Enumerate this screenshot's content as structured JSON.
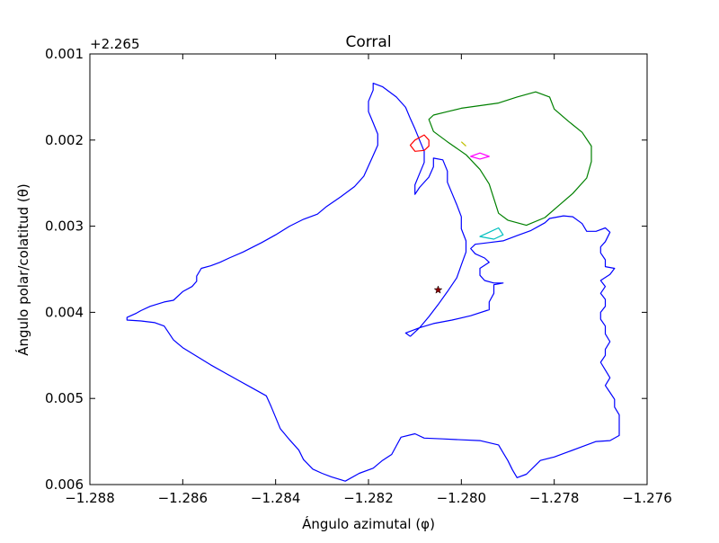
{
  "chart_data": {
    "type": "line",
    "title": "Corral",
    "xlabel": "Ángulo azimutal (φ)",
    "ylabel": "Ángulo polar/colatitud (θ)",
    "y_offset_label": "+2.265",
    "xlim": [
      -1.288,
      -1.276
    ],
    "ylim": [
      0.006,
      0.001
    ],
    "y_inverted": true,
    "grid": false,
    "x_ticks": [
      -1.288,
      -1.286,
      -1.284,
      -1.282,
      -1.28,
      -1.278,
      -1.276
    ],
    "x_tick_labels": [
      "−1.288",
      "−1.286",
      "−1.284",
      "−1.282",
      "−1.280",
      "−1.278",
      "−1.276"
    ],
    "y_ticks": [
      0.001,
      0.002,
      0.003,
      0.004,
      0.005,
      0.006
    ],
    "y_tick_labels": [
      "0.001",
      "0.002",
      "0.003",
      "0.004",
      "0.005",
      "0.006"
    ],
    "series": [
      {
        "color": "#0000ff",
        "closed": false,
        "points": [
          [
            -1.2811,
            0.00428
          ],
          [
            -1.2812,
            0.00424
          ],
          [
            -1.2809,
            0.00418
          ],
          [
            -1.2806,
            0.00413
          ],
          [
            -1.2802,
            0.00409
          ],
          [
            -1.2798,
            0.00404
          ],
          [
            -1.2794,
            0.00397
          ],
          [
            -1.2794,
            0.00388
          ],
          [
            -1.2793,
            0.00378
          ],
          [
            -1.2793,
            0.00368
          ],
          [
            -1.2792,
            0.00367
          ],
          [
            -1.2791,
            0.00366
          ],
          [
            -1.2793,
            0.00366
          ],
          [
            -1.2795,
            0.00363
          ],
          [
            -1.2796,
            0.00357
          ],
          [
            -1.2796,
            0.00349
          ],
          [
            -1.2794,
            0.00342
          ],
          [
            -1.2795,
            0.00337
          ],
          [
            -1.2797,
            0.00332
          ],
          [
            -1.2798,
            0.00326
          ],
          [
            -1.2797,
            0.00321
          ],
          [
            -1.2794,
            0.00319
          ],
          [
            -1.2791,
            0.00317
          ],
          [
            -1.2788,
            0.00311
          ],
          [
            -1.2785,
            0.00305
          ],
          [
            -1.2782,
            0.00296
          ],
          [
            -1.2781,
            0.00291
          ],
          [
            -1.2778,
            0.00288
          ],
          [
            -1.2776,
            0.00289
          ],
          [
            -1.2774,
            0.00297
          ],
          [
            -1.2773,
            0.00306
          ],
          [
            -1.2771,
            0.00306
          ],
          [
            -1.2769,
            0.00302
          ],
          [
            -1.2768,
            0.00307
          ],
          [
            -1.2769,
            0.00318
          ],
          [
            -1.277,
            0.00324
          ],
          [
            -1.277,
            0.00331
          ],
          [
            -1.2769,
            0.00339
          ],
          [
            -1.2769,
            0.00347
          ],
          [
            -1.2767,
            0.00349
          ],
          [
            -1.2768,
            0.00356
          ],
          [
            -1.277,
            0.00363
          ],
          [
            -1.2769,
            0.0037
          ],
          [
            -1.277,
            0.00378
          ],
          [
            -1.2769,
            0.00385
          ],
          [
            -1.2769,
            0.00393
          ],
          [
            -1.277,
            0.004
          ],
          [
            -1.277,
            0.00408
          ],
          [
            -1.2769,
            0.00416
          ],
          [
            -1.2769,
            0.00425
          ],
          [
            -1.2768,
            0.00434
          ],
          [
            -1.2769,
            0.00443
          ],
          [
            -1.2769,
            0.0045
          ],
          [
            -1.277,
            0.00458
          ],
          [
            -1.2769,
            0.00467
          ],
          [
            -1.2768,
            0.00476
          ],
          [
            -1.2769,
            0.00485
          ],
          [
            -1.2768,
            0.00493
          ],
          [
            -1.2767,
            0.00501
          ],
          [
            -1.2767,
            0.0051
          ],
          [
            -1.2766,
            0.00519
          ],
          [
            -1.2766,
            0.0053
          ],
          [
            -1.2766,
            0.00543
          ],
          [
            -1.2768,
            0.00549
          ],
          [
            -1.2771,
            0.0055
          ],
          [
            -1.2774,
            0.00556
          ],
          [
            -1.2777,
            0.00562
          ],
          [
            -1.278,
            0.00568
          ],
          [
            -1.2783,
            0.00572
          ],
          [
            -1.2786,
            0.00588
          ],
          [
            -1.2788,
            0.00592
          ],
          [
            -1.2789,
            0.00583
          ],
          [
            -1.279,
            0.00572
          ],
          [
            -1.2791,
            0.00563
          ],
          [
            -1.2792,
            0.00554
          ],
          [
            -1.2796,
            0.00549
          ],
          [
            -1.28,
            0.00548
          ],
          [
            -1.2804,
            0.00547
          ],
          [
            -1.2808,
            0.00546
          ],
          [
            -1.281,
            0.00541
          ],
          [
            -1.2813,
            0.00545
          ],
          [
            -1.2814,
            0.00555
          ],
          [
            -1.2815,
            0.00565
          ],
          [
            -1.2817,
            0.00572
          ],
          [
            -1.2819,
            0.00581
          ],
          [
            -1.2822,
            0.00587
          ],
          [
            -1.2825,
            0.00596
          ],
          [
            -1.2828,
            0.00591
          ],
          [
            -1.283,
            0.00587
          ],
          [
            -1.2832,
            0.00582
          ],
          [
            -1.2834,
            0.00571
          ],
          [
            -1.2835,
            0.0056
          ],
          [
            -1.2837,
            0.00548
          ],
          [
            -1.2839,
            0.00535
          ],
          [
            -1.284,
            0.00522
          ],
          [
            -1.2841,
            0.00509
          ],
          [
            -1.2842,
            0.00497
          ],
          [
            -1.2845,
            0.00488
          ],
          [
            -1.2848,
            0.00479
          ],
          [
            -1.2851,
            0.0047
          ],
          [
            -1.2854,
            0.00461
          ],
          [
            -1.2857,
            0.00451
          ],
          [
            -1.286,
            0.00441
          ],
          [
            -1.2862,
            0.00432
          ],
          [
            -1.2864,
            0.00416
          ],
          [
            -1.2866,
            0.00412
          ],
          [
            -1.2869,
            0.0041
          ],
          [
            -1.2872,
            0.00409
          ],
          [
            -1.2872,
            0.00406
          ],
          [
            -1.287,
            0.00401
          ],
          [
            -1.2869,
            0.00398
          ],
          [
            -1.2867,
            0.00393
          ],
          [
            -1.2864,
            0.00388
          ],
          [
            -1.2862,
            0.00386
          ],
          [
            -1.286,
            0.00376
          ],
          [
            -1.2858,
            0.0037
          ],
          [
            -1.2857,
            0.00364
          ],
          [
            -1.2857,
            0.00358
          ],
          [
            -1.2856,
            0.00349
          ],
          [
            -1.2854,
            0.00346
          ],
          [
            -1.2852,
            0.00342
          ],
          [
            -1.285,
            0.00337
          ],
          [
            -1.2847,
            0.0033
          ],
          [
            -1.2843,
            0.00319
          ],
          [
            -1.284,
            0.0031
          ],
          [
            -1.2837,
            0.003
          ],
          [
            -1.2834,
            0.00292
          ],
          [
            -1.2831,
            0.00286
          ],
          [
            -1.2829,
            0.00277
          ],
          [
            -1.2826,
            0.00266
          ],
          [
            -1.2823,
            0.00254
          ],
          [
            -1.2821,
            0.00242
          ],
          [
            -1.282,
            0.0023
          ],
          [
            -1.2819,
            0.00218
          ],
          [
            -1.2818,
            0.00206
          ],
          [
            -1.2818,
            0.00193
          ],
          [
            -1.2819,
            0.0018
          ],
          [
            -1.282,
            0.00167
          ],
          [
            -1.282,
            0.00155
          ],
          [
            -1.2819,
            0.00142
          ],
          [
            -1.2819,
            0.00134
          ],
          [
            -1.2817,
            0.00138
          ],
          [
            -1.2814,
            0.0015
          ],
          [
            -1.2812,
            0.00162
          ],
          [
            -1.2811,
            0.00175
          ],
          [
            -1.281,
            0.00187
          ],
          [
            -1.2809,
            0.002
          ],
          [
            -1.2808,
            0.00213
          ],
          [
            -1.2808,
            0.00226
          ],
          [
            -1.2809,
            0.00239
          ],
          [
            -1.281,
            0.00252
          ],
          [
            -1.281,
            0.00263
          ],
          [
            -1.2809,
            0.00255
          ],
          [
            -1.2807,
            0.00243
          ],
          [
            -1.2806,
            0.00231
          ],
          [
            -1.2806,
            0.00221
          ],
          [
            -1.2804,
            0.00223
          ],
          [
            -1.2803,
            0.00236
          ],
          [
            -1.2803,
            0.00249
          ],
          [
            -1.2802,
            0.00262
          ],
          [
            -1.2801,
            0.00275
          ],
          [
            -1.28,
            0.00289
          ],
          [
            -1.28,
            0.00303
          ],
          [
            -1.2799,
            0.00317
          ],
          [
            -1.2799,
            0.0033
          ],
          [
            -1.28,
            0.00345
          ],
          [
            -1.2801,
            0.0036
          ],
          [
            -1.2803,
            0.00376
          ],
          [
            -1.2805,
            0.00391
          ],
          [
            -1.2807,
            0.00405
          ],
          [
            -1.2809,
            0.00418
          ],
          [
            -1.2811,
            0.00428
          ]
        ]
      },
      {
        "color": "#008000",
        "closed": true,
        "points": [
          [
            -1.2807,
            0.00176
          ],
          [
            -1.2806,
            0.0019
          ],
          [
            -1.2803,
            0.00202
          ],
          [
            -1.2799,
            0.00217
          ],
          [
            -1.2796,
            0.00234
          ],
          [
            -1.2794,
            0.00251
          ],
          [
            -1.2793,
            0.00268
          ],
          [
            -1.2792,
            0.00285
          ],
          [
            -1.279,
            0.00293
          ],
          [
            -1.2786,
            0.00299
          ],
          [
            -1.2782,
            0.0029
          ],
          [
            -1.2779,
            0.00276
          ],
          [
            -1.2776,
            0.00262
          ],
          [
            -1.2773,
            0.00244
          ],
          [
            -1.2772,
            0.00225
          ],
          [
            -1.2772,
            0.00207
          ],
          [
            -1.2774,
            0.00191
          ],
          [
            -1.2777,
            0.00178
          ],
          [
            -1.278,
            0.00164
          ],
          [
            -1.2781,
            0.0015
          ],
          [
            -1.2784,
            0.00144
          ],
          [
            -1.2788,
            0.0015
          ],
          [
            -1.2792,
            0.00157
          ],
          [
            -1.2796,
            0.0016
          ],
          [
            -1.28,
            0.00163
          ],
          [
            -1.2803,
            0.00167
          ],
          [
            -1.2806,
            0.00171
          ],
          [
            -1.2807,
            0.00176
          ]
        ]
      },
      {
        "color": "#ff0000",
        "closed": true,
        "points": [
          [
            -1.281,
            0.002
          ],
          [
            -1.2811,
            0.00206
          ],
          [
            -1.281,
            0.00213
          ],
          [
            -1.2808,
            0.00212
          ],
          [
            -1.2807,
            0.00207
          ],
          [
            -1.2807,
            0.002
          ],
          [
            -1.2808,
            0.00194
          ],
          [
            -1.281,
            0.002
          ]
        ]
      },
      {
        "color": "#ff00ff",
        "closed": true,
        "points": [
          [
            -1.2796,
            0.00215
          ],
          [
            -1.2798,
            0.00219
          ],
          [
            -1.2796,
            0.00222
          ],
          [
            -1.2794,
            0.00219
          ],
          [
            -1.2796,
            0.00215
          ]
        ]
      },
      {
        "color": "#00bfbf",
        "closed": true,
        "points": [
          [
            -1.2792,
            0.00302
          ],
          [
            -1.2794,
            0.00307
          ],
          [
            -1.2796,
            0.00312
          ],
          [
            -1.2793,
            0.00315
          ],
          [
            -1.2791,
            0.0031
          ],
          [
            -1.2792,
            0.00302
          ]
        ]
      },
      {
        "color": "#bfbf00",
        "closed": false,
        "points": [
          [
            -1.28,
            0.00202
          ],
          [
            -1.2799,
            0.00207
          ]
        ]
      }
    ],
    "markers": [
      {
        "x": -1.2805,
        "y": 0.00374,
        "symbol": "star",
        "color": "#8b0000"
      }
    ]
  }
}
